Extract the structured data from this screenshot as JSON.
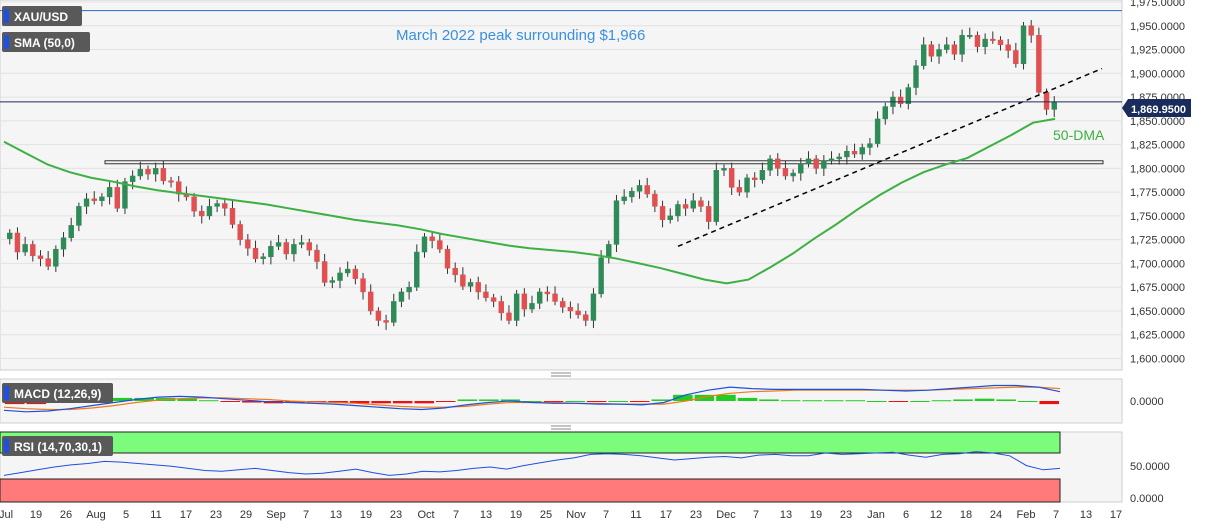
{
  "symbol": "XAU/USD",
  "sma_label": "SMA (50,0)",
  "macd_label": "MACD (12,26,9)",
  "rsi_label": "RSI (14,70,30,1)",
  "annotations": {
    "peak_text": "March 2022 peak surrounding $1,966",
    "dma_text": "50-DMA"
  },
  "current_price_label": "1,869.9500",
  "colors": {
    "up": "#2e8b57",
    "down": "#e05050",
    "sma": "#3cb043",
    "peak_line": "#3a7bd5",
    "macd_line": "#1f4fe0",
    "signal_line": "#f07b1a",
    "hist_up": "#22cc22",
    "hist_down": "#ee1111",
    "rsi_line": "#1f4fe0",
    "rsi_overbought": "#7cfc7c",
    "rsi_oversold": "#ff7b7b",
    "price_tag": "#1a2c5b"
  },
  "chart_data": [
    {
      "type": "candlestick",
      "title": "",
      "ylim": [
        1590,
        1975
      ],
      "y_ticks": [
        1600,
        1625,
        1650,
        1675,
        1700,
        1725,
        1750,
        1775,
        1800,
        1825,
        1850,
        1875,
        1900,
        1925,
        1950,
        1975
      ],
      "y_tick_labels": [
        "1,600.0000",
        "1,625.0000",
        "1,650.0000",
        "1,675.0000",
        "1,700.0000",
        "1,725.0000",
        "1,750.0000",
        "1,775.0000",
        "1,800.0000",
        "1,825.0000",
        "1,850.0000",
        "1,875.0000",
        "1,900.0000",
        "1,925.0000",
        "1,950.0000",
        "1,975.0000"
      ],
      "x_tick_labels": [
        "Jul",
        "19",
        "26",
        "Aug",
        "5",
        "11",
        "17",
        "23",
        "29",
        "Sep",
        "7",
        "13",
        "19",
        "23",
        "Oct",
        "7",
        "13",
        "19",
        "25",
        "Nov",
        "7",
        "11",
        "17",
        "23",
        "Dec",
        "7",
        "13",
        "19",
        "23",
        "Jan",
        "6",
        "12",
        "18",
        "24",
        "Feb",
        "7",
        "13",
        "17"
      ],
      "candles": [
        1732,
        1712,
        1720,
        1708,
        1705,
        1697,
        1715,
        1727,
        1740,
        1760,
        1768,
        1766,
        1770,
        1780,
        1758,
        1786,
        1792,
        1799,
        1794,
        1800,
        1787,
        1786,
        1773,
        1770,
        1755,
        1750,
        1760,
        1763,
        1758,
        1741,
        1725,
        1716,
        1705,
        1707,
        1718,
        1722,
        1710,
        1720,
        1722,
        1714,
        1702,
        1680,
        1682,
        1690,
        1694,
        1684,
        1670,
        1650,
        1640,
        1638,
        1660,
        1670,
        1675,
        1712,
        1728,
        1724,
        1715,
        1695,
        1688,
        1676,
        1680,
        1670,
        1664,
        1660,
        1648,
        1640,
        1668,
        1652,
        1658,
        1670,
        1668,
        1660,
        1654,
        1650,
        1646,
        1640,
        1668,
        1706,
        1720,
        1766,
        1770,
        1776,
        1782,
        1773,
        1760,
        1746,
        1750,
        1762,
        1758,
        1766,
        1760,
        1744,
        1798,
        1800,
        1780,
        1775,
        1790,
        1788,
        1798,
        1810,
        1800,
        1792,
        1795,
        1805,
        1810,
        1800,
        1808,
        1810,
        1812,
        1818,
        1815,
        1822,
        1826,
        1852,
        1865,
        1875,
        1868,
        1885,
        1908,
        1930,
        1918,
        1925,
        1930,
        1920,
        1940,
        1940,
        1928,
        1936,
        1935,
        1930,
        1924,
        1910,
        1950,
        1940,
        1880,
        1862,
        1870
      ],
      "sma_50": [
        1828,
        1816,
        1804,
        1796,
        1790,
        1786,
        1781,
        1777,
        1774,
        1771,
        1768,
        1765,
        1762,
        1758,
        1754,
        1750,
        1746,
        1743,
        1740,
        1736,
        1731,
        1727,
        1723,
        1719,
        1716,
        1714,
        1712,
        1709,
        1705,
        1700,
        1695,
        1689,
        1683,
        1679,
        1683,
        1696,
        1710,
        1726,
        1741,
        1757,
        1772,
        1785,
        1796,
        1804,
        1811,
        1823,
        1835,
        1848,
        1852
      ],
      "trendline": [
        [
          1718,
          "start"
        ],
        [
          1905,
          "end"
        ]
      ],
      "horizontal_levels": {
        "peak": 1966,
        "resistance_band": [
          1805,
          1808
        ],
        "current": 1869.95
      },
      "peak_annotation": "March 2022 peak surrounding $1,966",
      "sma_annotation": "50-DMA"
    },
    {
      "type": "bar+line",
      "name": "MACD (12,26,9)",
      "y_tick_labels": [
        "0.0000"
      ],
      "macd": [
        -12,
        -14,
        -13,
        -10,
        -6,
        -2,
        2,
        5,
        6,
        5,
        3,
        1,
        -1,
        -2,
        -3,
        -4,
        -6,
        -8,
        -10,
        -11,
        -9,
        -5,
        -2,
        0,
        -2,
        -3,
        -3,
        -4,
        -4,
        -5,
        -2,
        8,
        14,
        18,
        16,
        15,
        15,
        15,
        15,
        15,
        14,
        13,
        14,
        16,
        18,
        20,
        20,
        18,
        12
      ],
      "signal": [
        -8,
        -10,
        -11,
        -11,
        -9,
        -6,
        -2,
        1,
        3,
        4,
        4,
        3,
        2,
        0,
        -1,
        -2,
        -3,
        -5,
        -7,
        -8,
        -8,
        -7,
        -4,
        -2,
        -2,
        -2,
        -3,
        -3,
        -4,
        -4,
        -4,
        0,
        6,
        10,
        12,
        13,
        14,
        14,
        14,
        14,
        14,
        14,
        14,
        15,
        16,
        17,
        18,
        18,
        16
      ],
      "histogram": [
        -4,
        -4,
        -2,
        1,
        3,
        4,
        4,
        4,
        3,
        1,
        -1,
        -2,
        -3,
        -2,
        -2,
        -2,
        -3,
        -3,
        -3,
        -3,
        -1,
        2,
        2,
        2,
        0,
        -1,
        0,
        -1,
        0,
        -1,
        2,
        8,
        8,
        8,
        4,
        2,
        1,
        1,
        1,
        1,
        0,
        -1,
        0,
        1,
        2,
        3,
        2,
        0,
        -4
      ]
    },
    {
      "type": "line",
      "name": "RSI (14,70,30,1)",
      "y_tick_labels": [
        "0.0000",
        "50.0000"
      ],
      "overbought": 70,
      "oversold": 30,
      "values": [
        38,
        42,
        46,
        50,
        53,
        55,
        58,
        57,
        55,
        53,
        51,
        48,
        45,
        44,
        46,
        48,
        45,
        42,
        40,
        41,
        44,
        47,
        42,
        38,
        40,
        44,
        43,
        45,
        48,
        50,
        47,
        52,
        56,
        60,
        63,
        68,
        69,
        68,
        66,
        63,
        60,
        62,
        64,
        65,
        63,
        67,
        68,
        66,
        66,
        70,
        68,
        69,
        70,
        71,
        67,
        64,
        68,
        69,
        72,
        70,
        66,
        52,
        46,
        48
      ]
    }
  ]
}
